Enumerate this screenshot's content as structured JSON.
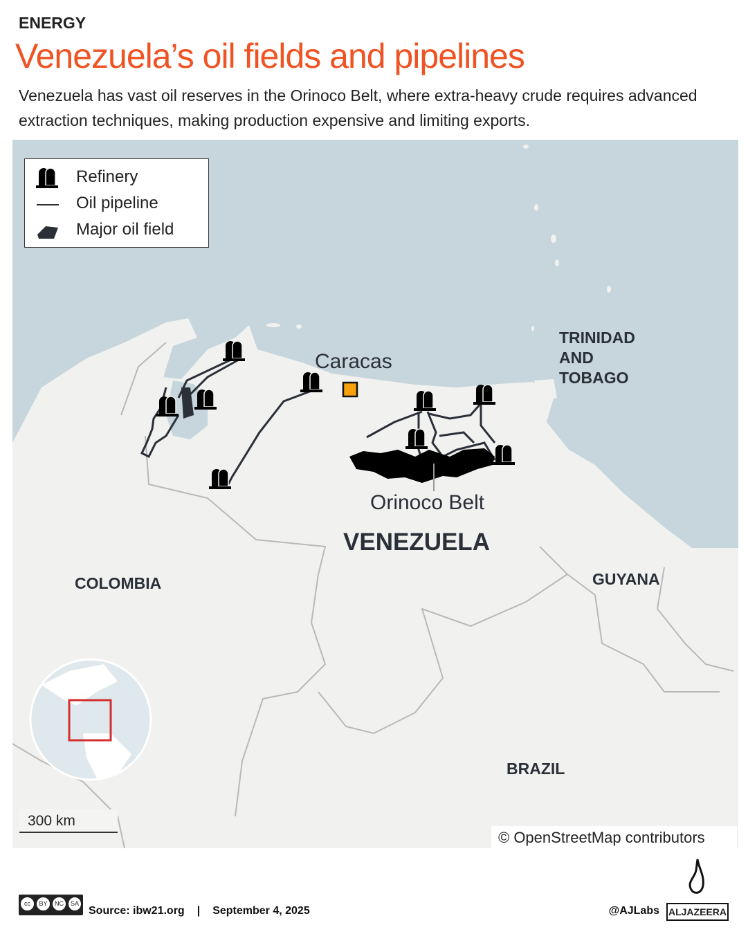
{
  "header": {
    "kicker": "ENERGY",
    "title": "Venezuela’s oil fields and pipelines",
    "subtitle": "Venezuela has vast oil reserves in the Orinoco Belt, where extra-heavy crude requires advanced extraction techniques, making production expensive and limiting exports."
  },
  "legend": {
    "items": [
      {
        "icon": "refinery-icon",
        "label": "Refinery"
      },
      {
        "icon": "pipeline-line",
        "label": "Oil pipeline"
      },
      {
        "icon": "oil-field-shape",
        "label": "Major oil field"
      }
    ]
  },
  "map": {
    "labels": {
      "caracas": "Caracas",
      "orinoco": "Orinoco Belt",
      "venezuela": "VENEZUELA",
      "colombia": "COLOMBIA",
      "guyana": "GUYANA",
      "brazil": "BRAZIL",
      "trinidad": [
        "TRINIDAD",
        "AND",
        "TOBAGO"
      ]
    },
    "scale": "300 km",
    "attribution": "© OpenStreetMap contributors",
    "colors": {
      "sea": "#c6d6dc",
      "land": "#f1f1ef",
      "capital": "#f7a10c",
      "oil": "#000000",
      "pipeline": "#2a2f38",
      "title": "#ef5323",
      "locator": "#d32f2f"
    }
  },
  "footer": {
    "license": "CC BY NC SA",
    "license_parts": [
      "cc",
      "BY",
      "NC",
      "SA"
    ],
    "source": "Source: ibw21.org",
    "separator": "|",
    "date": "September 4, 2025",
    "handle": "@AJLabs",
    "brand": "ALJAZEERA"
  }
}
